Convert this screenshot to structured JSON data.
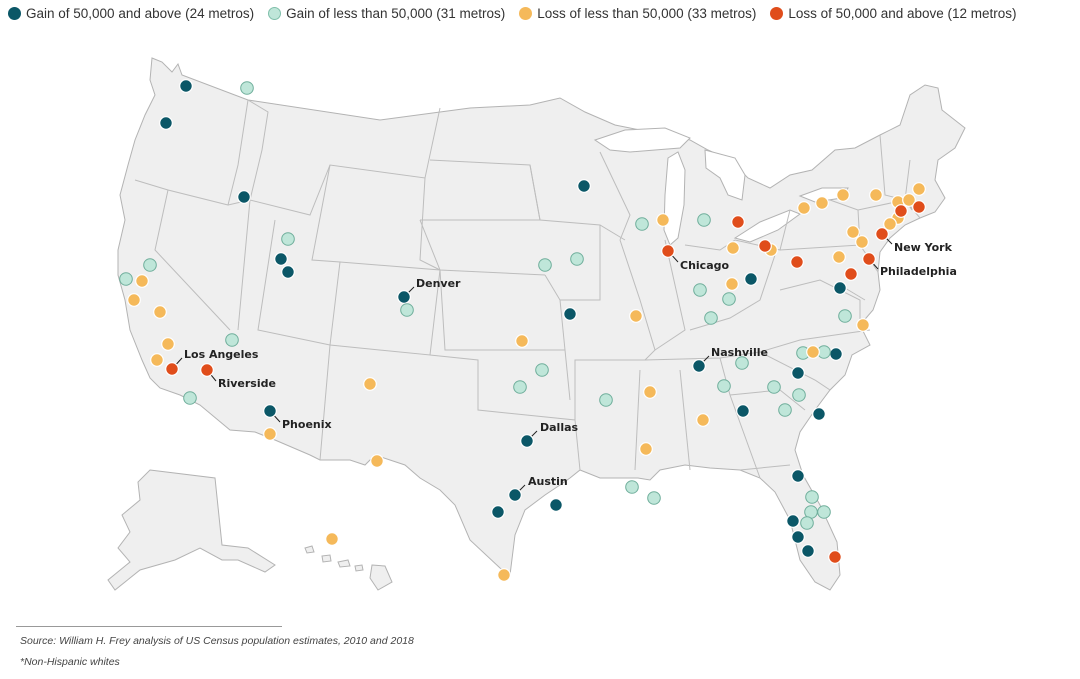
{
  "colors": {
    "gain_large": "#0b5767",
    "gain_small": "#bfe6d9",
    "loss_small": "#f5b95a",
    "loss_large": "#e04d1b",
    "land": "#efefef",
    "border": "#b3b3b3"
  },
  "legend": [
    {
      "key": "gain_large",
      "label": "Gain of 50,000 and above (24 metros)"
    },
    {
      "key": "gain_small",
      "label": "Gain of less than 50,000 (31 metros)"
    },
    {
      "key": "loss_small",
      "label": "Loss of less than 50,000 (33 metros)"
    },
    {
      "key": "loss_large",
      "label": "Loss of 50,000 and above (12 metros)"
    }
  ],
  "labels": {
    "denver": "Denver",
    "los_angeles": "Los Angeles",
    "riverside": "Riverside",
    "phoenix": "Phoenix",
    "dallas": "Dallas",
    "austin": "Austin",
    "nashville": "Nashville",
    "chicago": "Chicago",
    "new_york": "New York",
    "philadelphia": "Philadelphia"
  },
  "footer": {
    "source": "Source: William H. Frey analysis of US Census population estimates, 2010 and 2018",
    "note": "*Non-Hispanic whites"
  }
}
